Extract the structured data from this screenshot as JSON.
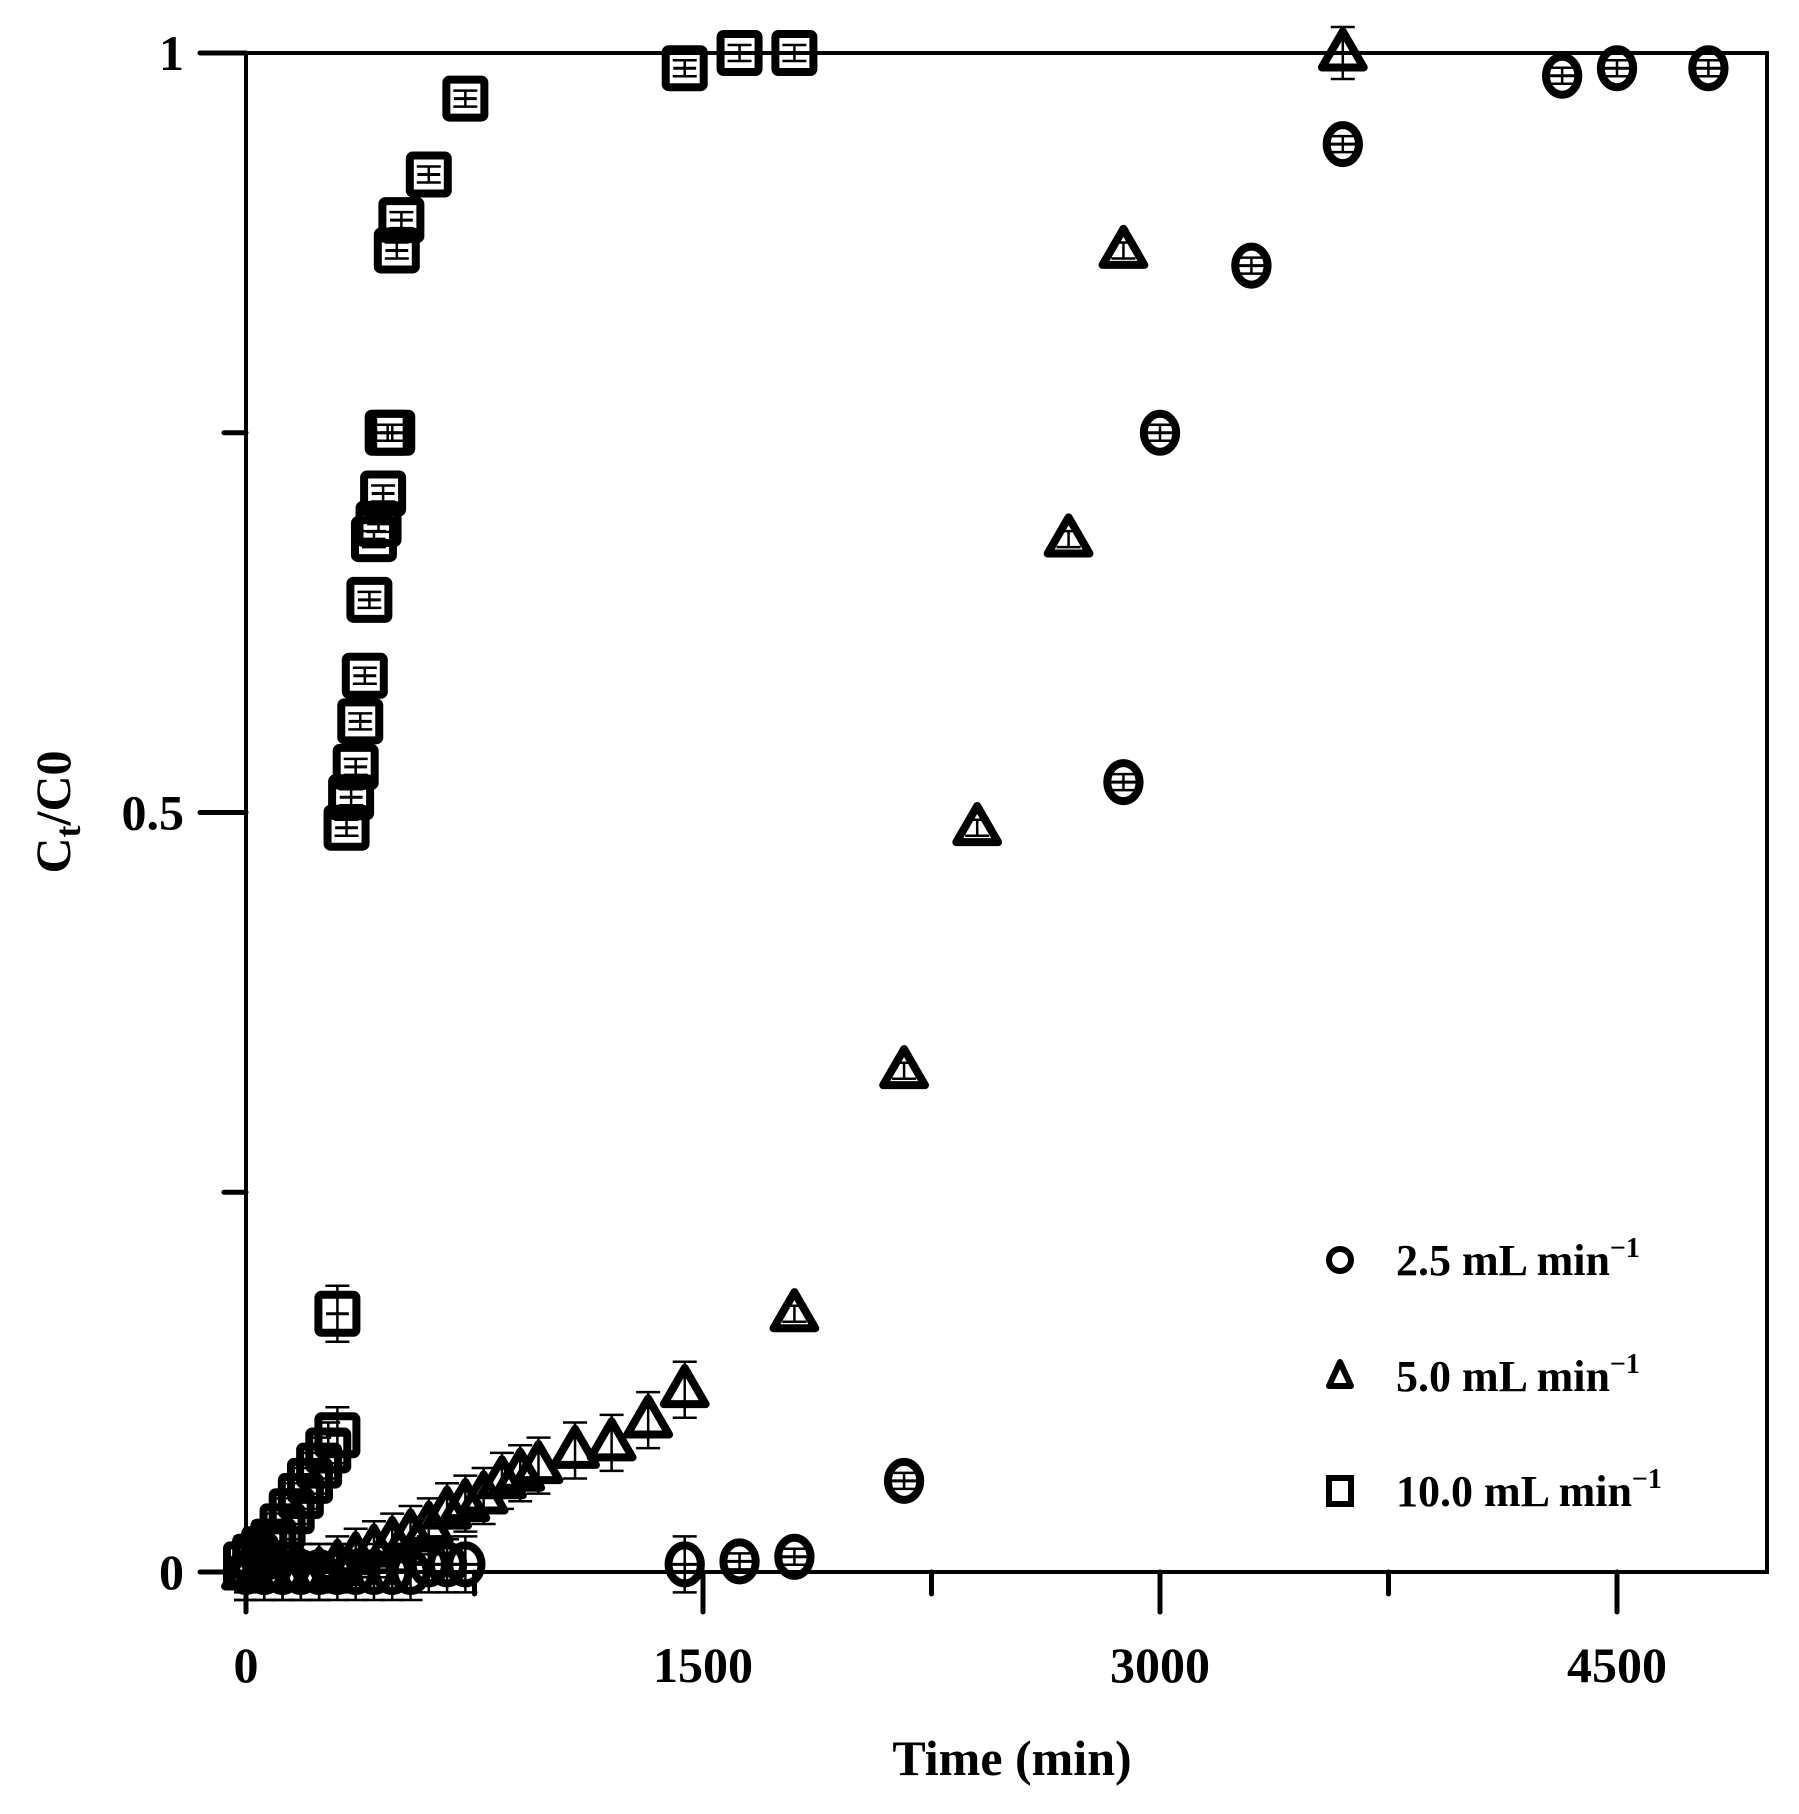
{
  "chart_data": {
    "type": "scatter",
    "title": "",
    "xlabel": "Time (min)",
    "ylabel": "Ct/C0",
    "xlim": [
      0,
      4950
    ],
    "ylim": [
      0,
      1
    ],
    "x_ticks": [
      0,
      1500,
      3000,
      4500
    ],
    "x_minor_ticks": [
      750,
      2250,
      3750
    ],
    "y_ticks": [
      0,
      0.5,
      1
    ],
    "y_minor_ticks": [
      0.25,
      0.75
    ],
    "x_tick_labels": [
      "0",
      "1500",
      "3000",
      "4500"
    ],
    "y_tick_labels": [
      "0",
      "0.5",
      "1"
    ],
    "grid": false,
    "legend_position": "lower right",
    "series": [
      {
        "name": "2.5 mL min⁻¹",
        "marker": "circle",
        "x": [
          0,
          60,
          120,
          180,
          240,
          300,
          360,
          420,
          480,
          540,
          600,
          660,
          720,
          1440,
          1620,
          1800,
          2160,
          2880,
          3000,
          3300,
          3600,
          4320,
          4500,
          4800
        ],
        "y": [
          0.0,
          0.0,
          0.0,
          0.0,
          0.0,
          0.0,
          0.0,
          0.0,
          0.0,
          0.0,
          0.005,
          0.005,
          0.005,
          0.005,
          0.007,
          0.01,
          0.06,
          0.52,
          0.75,
          0.86,
          0.94,
          0.985,
          0.99,
          0.99
        ]
      },
      {
        "name": "5.0 mL min⁻¹",
        "marker": "triangle",
        "x": [
          0,
          60,
          120,
          180,
          240,
          300,
          360,
          420,
          480,
          540,
          600,
          660,
          720,
          780,
          840,
          900,
          960,
          1080,
          1200,
          1320,
          1440,
          1800,
          2160,
          2400,
          2700,
          2880,
          3600
        ],
        "y": [
          0.0,
          0.0,
          0.0,
          0.0,
          0.0,
          0.005,
          0.01,
          0.015,
          0.02,
          0.025,
          0.03,
          0.04,
          0.045,
          0.05,
          0.06,
          0.065,
          0.07,
          0.08,
          0.085,
          0.1,
          0.12,
          0.17,
          0.33,
          0.49,
          0.68,
          0.87,
          1.0
        ]
      },
      {
        "name": "10.0 mL min⁻¹",
        "marker": "square",
        "x": [
          0,
          30,
          60,
          90,
          120,
          150,
          180,
          210,
          240,
          270,
          300,
          300,
          330,
          345,
          360,
          375,
          390,
          405,
          420,
          435,
          450,
          465,
          480,
          495,
          510,
          600,
          720,
          1440,
          1620,
          1800
        ],
        "y": [
          0.005,
          0.01,
          0.015,
          0.02,
          0.03,
          0.04,
          0.05,
          0.06,
          0.07,
          0.08,
          0.09,
          0.17,
          0.49,
          0.51,
          0.53,
          0.56,
          0.59,
          0.64,
          0.68,
          0.69,
          0.71,
          0.75,
          0.75,
          0.87,
          0.89,
          0.92,
          0.97,
          0.99,
          1.0,
          1.0
        ]
      }
    ]
  },
  "axes": {
    "xlabel": "Time (min)",
    "ylabel_main": "C",
    "ylabel_sub1": "t",
    "ylabel_mid": "/C",
    "ylabel_sub2": "0"
  },
  "legend": {
    "items": [
      {
        "label_main": "2.5 mL min",
        "label_sup": "−1",
        "marker": "circle"
      },
      {
        "label_main": "5.0 mL min",
        "label_sup": "−1",
        "marker": "triangle"
      },
      {
        "label_main": "10.0 mL min",
        "label_sup": "−1",
        "marker": "square"
      }
    ]
  },
  "colors": {
    "stroke": "#000000",
    "background": "#ffffff"
  }
}
